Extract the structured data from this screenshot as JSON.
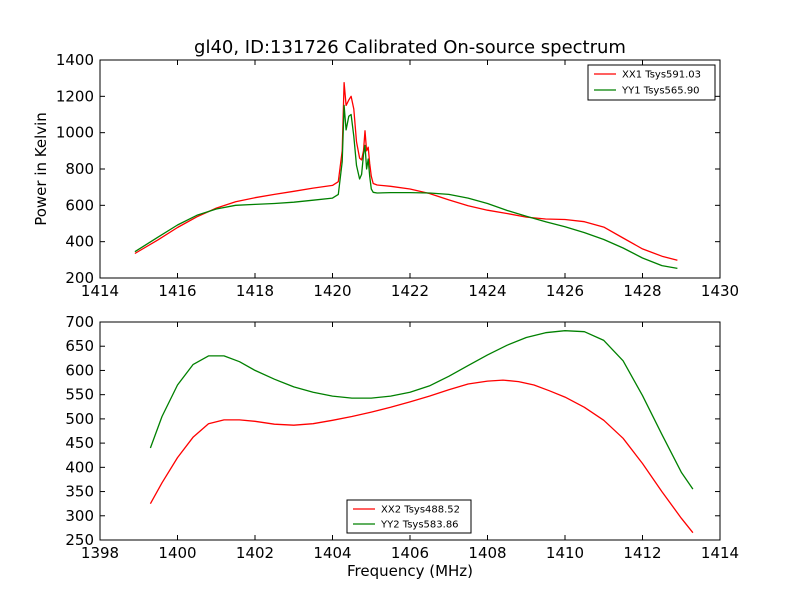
{
  "chart_data": [
    {
      "type": "line",
      "title": "gl40, ID:131726 Calibrated On-source spectrum",
      "xlabel": "",
      "ylabel": "Power in Kelvin",
      "xlim": [
        1414,
        1430
      ],
      "ylim": [
        200,
        1400
      ],
      "xticks": [
        "1414",
        "1416",
        "1418",
        "1420",
        "1422",
        "1424",
        "1426",
        "1428",
        "1430"
      ],
      "yticks": [
        "200",
        "400",
        "600",
        "800",
        "1000",
        "1200",
        "1400"
      ],
      "legend_position": "upper right",
      "series": [
        {
          "name": "XX1 Tsys591.03",
          "color": "#ff0000",
          "x": [
            1414.9,
            1415.5,
            1416.0,
            1416.5,
            1417.0,
            1417.5,
            1418.0,
            1418.5,
            1419.0,
            1419.5,
            1420.0,
            1420.15,
            1420.25,
            1420.3,
            1420.35,
            1420.42,
            1420.48,
            1420.55,
            1420.62,
            1420.7,
            1420.75,
            1420.8,
            1420.84,
            1420.88,
            1420.92,
            1420.96,
            1421.0,
            1421.05,
            1421.15,
            1421.5,
            1422.0,
            1422.5,
            1423.0,
            1423.5,
            1424.0,
            1424.5,
            1425.0,
            1425.5,
            1426.0,
            1426.5,
            1427.0,
            1427.5,
            1428.0,
            1428.5,
            1428.9
          ],
          "y": [
            335,
            410,
            478,
            537,
            585,
            620,
            642,
            660,
            677,
            695,
            710,
            730,
            900,
            1275,
            1150,
            1180,
            1200,
            1130,
            950,
            860,
            850,
            900,
            1010,
            900,
            920,
            830,
            760,
            720,
            712,
            705,
            690,
            665,
            630,
            598,
            573,
            555,
            535,
            525,
            522,
            510,
            480,
            420,
            360,
            320,
            298
          ]
        },
        {
          "name": "YY1 Tsys565.90",
          "color": "#008000",
          "x": [
            1414.9,
            1415.5,
            1416.0,
            1416.5,
            1417.0,
            1417.5,
            1418.0,
            1418.5,
            1419.0,
            1419.5,
            1420.0,
            1420.15,
            1420.25,
            1420.3,
            1420.35,
            1420.42,
            1420.48,
            1420.55,
            1420.62,
            1420.7,
            1420.75,
            1420.8,
            1420.84,
            1420.88,
            1420.92,
            1420.96,
            1421.0,
            1421.05,
            1421.15,
            1421.5,
            1422.0,
            1422.5,
            1423.0,
            1423.5,
            1424.0,
            1424.5,
            1425.0,
            1425.5,
            1426.0,
            1426.5,
            1427.0,
            1427.5,
            1428.0,
            1428.5,
            1428.9
          ],
          "y": [
            345,
            425,
            492,
            545,
            580,
            600,
            605,
            610,
            617,
            628,
            640,
            660,
            840,
            1150,
            1015,
            1090,
            1100,
            980,
            820,
            745,
            770,
            880,
            930,
            800,
            855,
            760,
            690,
            672,
            668,
            670,
            670,
            668,
            660,
            640,
            610,
            572,
            540,
            510,
            482,
            450,
            412,
            365,
            310,
            268,
            253
          ]
        }
      ]
    },
    {
      "type": "line",
      "title": "",
      "xlabel": "Frequency (MHz)",
      "ylabel": "",
      "xlim": [
        1398,
        1414
      ],
      "ylim": [
        250,
        700
      ],
      "xticks": [
        "1398",
        "1400",
        "1402",
        "1404",
        "1406",
        "1408",
        "1410",
        "1412",
        "1414"
      ],
      "yticks": [
        "250",
        "300",
        "350",
        "400",
        "450",
        "500",
        "550",
        "600",
        "650",
        "700"
      ],
      "legend_position": "lower center",
      "series": [
        {
          "name": "XX2 Tsys488.52",
          "color": "#ff0000",
          "x": [
            1399.3,
            1399.6,
            1400.0,
            1400.4,
            1400.8,
            1401.2,
            1401.6,
            1402.0,
            1402.5,
            1403.0,
            1403.5,
            1404.0,
            1404.5,
            1405.0,
            1405.5,
            1406.0,
            1406.5,
            1407.0,
            1407.5,
            1408.0,
            1408.4,
            1408.8,
            1409.2,
            1409.6,
            1410.0,
            1410.5,
            1411.0,
            1411.5,
            1412.0,
            1412.5,
            1413.0,
            1413.3
          ],
          "y": [
            325,
            368,
            420,
            462,
            490,
            498,
            498,
            495,
            489,
            487,
            490,
            497,
            505,
            514,
            524,
            535,
            547,
            560,
            572,
            578,
            580,
            577,
            570,
            558,
            545,
            524,
            497,
            460,
            408,
            350,
            295,
            265
          ]
        },
        {
          "name": "YY2 Tsys583.86",
          "color": "#008000",
          "x": [
            1399.3,
            1399.6,
            1400.0,
            1400.4,
            1400.8,
            1401.2,
            1401.6,
            1402.0,
            1402.5,
            1403.0,
            1403.5,
            1404.0,
            1404.5,
            1405.0,
            1405.5,
            1406.0,
            1406.5,
            1407.0,
            1407.5,
            1408.0,
            1408.5,
            1409.0,
            1409.5,
            1410.0,
            1410.5,
            1411.0,
            1411.5,
            1412.0,
            1412.5,
            1413.0,
            1413.3
          ],
          "y": [
            440,
            505,
            570,
            612,
            630,
            630,
            618,
            600,
            582,
            566,
            555,
            547,
            543,
            543,
            547,
            555,
            568,
            588,
            610,
            632,
            652,
            668,
            678,
            682,
            680,
            662,
            620,
            548,
            468,
            390,
            355
          ]
        }
      ]
    }
  ]
}
